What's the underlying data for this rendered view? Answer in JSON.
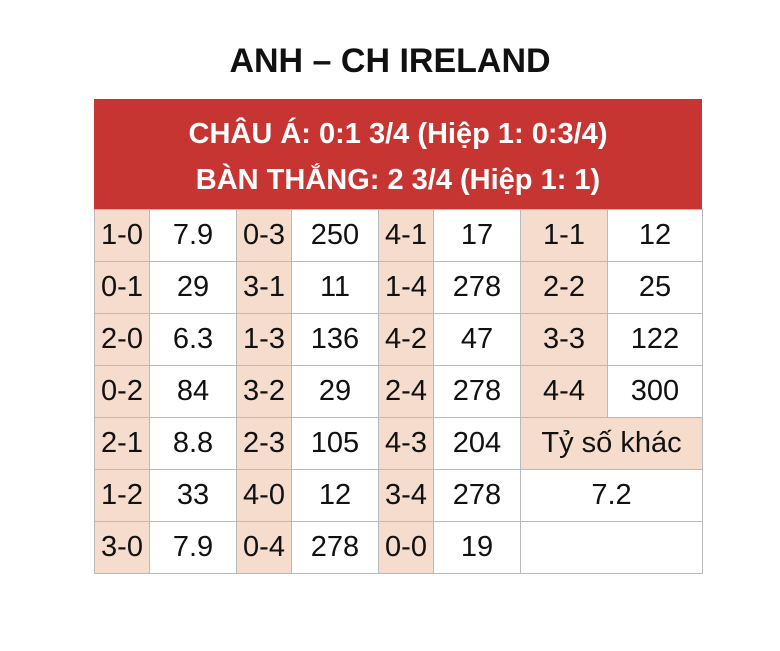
{
  "title": "ANH – CH IRELAND",
  "header": {
    "line1": "CHÂU Á: 0:1 3/4 (Hiệp 1: 0:3/4)",
    "line2": "BÀN THẮNG: 2 3/4 (Hiệp 1: 1)"
  },
  "rows": [
    [
      {
        "score": "1-0",
        "odds": "7.9"
      },
      {
        "score": "0-3",
        "odds": "250"
      },
      {
        "score": "4-1",
        "odds": "17"
      },
      {
        "score": "1-1",
        "odds": "12"
      }
    ],
    [
      {
        "score": "0-1",
        "odds": "29"
      },
      {
        "score": "3-1",
        "odds": "11"
      },
      {
        "score": "1-4",
        "odds": "278"
      },
      {
        "score": "2-2",
        "odds": "25"
      }
    ],
    [
      {
        "score": "2-0",
        "odds": "6.3"
      },
      {
        "score": "1-3",
        "odds": "136"
      },
      {
        "score": "4-2",
        "odds": "47"
      },
      {
        "score": "3-3",
        "odds": "122"
      }
    ],
    [
      {
        "score": "0-2",
        "odds": "84"
      },
      {
        "score": "3-2",
        "odds": "29"
      },
      {
        "score": "2-4",
        "odds": "278"
      },
      {
        "score": "4-4",
        "odds": "300"
      }
    ],
    [
      {
        "score": "2-1",
        "odds": "8.8"
      },
      {
        "score": "2-3",
        "odds": "105"
      },
      {
        "score": "4-3",
        "odds": "204"
      }
    ],
    [
      {
        "score": "1-2",
        "odds": "33"
      },
      {
        "score": "4-0",
        "odds": "12"
      },
      {
        "score": "3-4",
        "odds": "278"
      }
    ],
    [
      {
        "score": "3-0",
        "odds": "7.9"
      },
      {
        "score": "0-4",
        "odds": "278"
      },
      {
        "score": "0-0",
        "odds": "19"
      }
    ]
  ],
  "other": {
    "label": "Tỷ số khác",
    "value": "7.2"
  },
  "colors": {
    "header_bg": "#c73532",
    "score_cell_bg": "#f6dccc",
    "border": "#b9b9b9"
  }
}
